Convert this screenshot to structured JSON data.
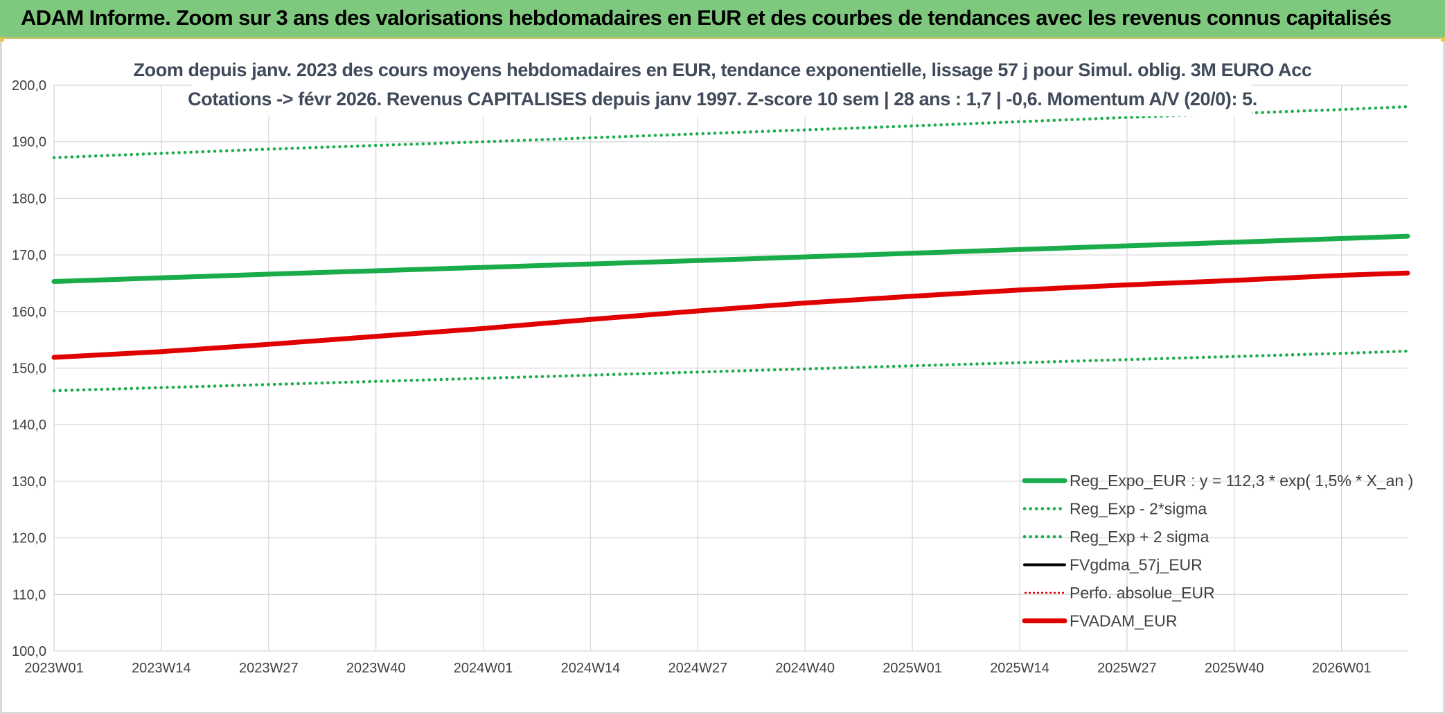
{
  "header": {
    "title": "ADAM Informe. Zoom sur 3 ans des valorisations hebdomadaires en EUR et des courbes de tendances avec les revenus connus capitalisés"
  },
  "colors": {
    "header_bg": "#7fc97f",
    "trend": "#1aac4a",
    "band": "#1aac4a",
    "fvgdma": "#000000",
    "perfo": "#e00000",
    "fvadam": "#e00000"
  },
  "chart_data": {
    "type": "line",
    "title_line1": "Zoom depuis janv. 2023 des cours moyens hebdomadaires en EUR, tendance exponentielle, lissage 57 j pour Simul. oblig. 3M EURO Acc",
    "title_line2": "Cotations -> févr 2026. Revenus CAPITALISES depuis janv 1997. Z-score 10 sem | 28 ans : 1,7 | -0,6. Momentum A/V (20/0): 5.",
    "xlabel": "",
    "ylabel": "",
    "ylim": [
      100,
      200
    ],
    "yticks": [
      "100,0",
      "110,0",
      "120,0",
      "130,0",
      "140,0",
      "150,0",
      "160,0",
      "170,0",
      "180,0",
      "190,0",
      "200,0"
    ],
    "x_range": [
      0,
      164
    ],
    "xticks": [
      {
        "label": "2023W01",
        "x": 0
      },
      {
        "label": "2023W14",
        "x": 13
      },
      {
        "label": "2023W27",
        "x": 26
      },
      {
        "label": "2023W40",
        "x": 39
      },
      {
        "label": "2024W01",
        "x": 52
      },
      {
        "label": "2024W14",
        "x": 65
      },
      {
        "label": "2024W27",
        "x": 78
      },
      {
        "label": "2024W40",
        "x": 91
      },
      {
        "label": "2025W01",
        "x": 104
      },
      {
        "label": "2025W14",
        "x": 117
      },
      {
        "label": "2025W27",
        "x": 130
      },
      {
        "label": "2025W40",
        "x": 143
      },
      {
        "label": "2026W01",
        "x": 156
      }
    ],
    "grid": true,
    "legend_position": "bottom-right",
    "series": [
      {
        "name": "Reg_Expo_EUR : y = 112,3 * exp( 1,5% *  X_an )",
        "style": "solid-thick",
        "color": "#1aac4a",
        "x": [
          0,
          26,
          52,
          78,
          104,
          130,
          156,
          164
        ],
        "y": [
          165.3,
          166.6,
          167.8,
          169.0,
          170.3,
          171.6,
          172.9,
          173.3
        ]
      },
      {
        "name": "Reg_Exp - 2*sigma",
        "style": "dotted",
        "color": "#1aac4a",
        "x": [
          0,
          26,
          52,
          78,
          104,
          130,
          156,
          164
        ],
        "y": [
          146.0,
          147.1,
          148.2,
          149.3,
          150.4,
          151.5,
          152.6,
          153.0
        ]
      },
      {
        "name": "Reg_Exp + 2 sigma",
        "style": "dotted",
        "color": "#1aac4a",
        "x": [
          0,
          26,
          52,
          78,
          104,
          130,
          156,
          164
        ],
        "y": [
          187.2,
          188.7,
          190.0,
          191.4,
          192.8,
          194.3,
          195.7,
          196.2
        ]
      },
      {
        "name": "FVgdma_57j_EUR",
        "style": "solid",
        "color": "#000000",
        "x": [],
        "y": []
      },
      {
        "name": "Perfo. absolue_EUR",
        "style": "dotted-thin",
        "color": "#e00000",
        "x": [],
        "y": []
      },
      {
        "name": "FVADAM_EUR",
        "style": "solid-thick",
        "color": "#e00000",
        "x": [
          0,
          13,
          26,
          39,
          52,
          65,
          78,
          91,
          104,
          117,
          130,
          143,
          156,
          164
        ],
        "y": [
          151.9,
          152.9,
          154.2,
          155.6,
          157.0,
          158.6,
          160.1,
          161.5,
          162.7,
          163.8,
          164.7,
          165.5,
          166.4,
          166.8
        ]
      }
    ]
  }
}
